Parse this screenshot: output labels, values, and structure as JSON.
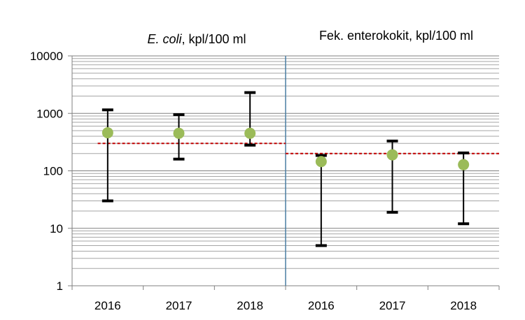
{
  "chart_data": {
    "type": "scatter",
    "y_scale": "log",
    "ylim": [
      1,
      10000
    ],
    "y_ticks": [
      "1",
      "10",
      "100",
      "1000",
      "10000"
    ],
    "grid": "horizontal minor gridlines",
    "categories": [
      "2016",
      "2017",
      "2018",
      "2016",
      "2017",
      "2018"
    ],
    "panels": [
      {
        "title_italic": "E. coli",
        "title_rest": ", kpl/100 ml",
        "threshold": 300,
        "threshold_color": "#c00000",
        "points": [
          {
            "category": "2016",
            "value": 460,
            "min": 30,
            "max": 1150
          },
          {
            "category": "2017",
            "value": 450,
            "min": 160,
            "max": 950
          },
          {
            "category": "2018",
            "value": 450,
            "min": 280,
            "max": 2300
          }
        ]
      },
      {
        "title_italic": "",
        "title_rest": "Fek. enterokokit,  kpl/100 ml",
        "threshold": 200,
        "threshold_color": "#c00000",
        "points": [
          {
            "category": "2016",
            "value": 145,
            "min": 5,
            "max": 185
          },
          {
            "category": "2017",
            "value": 190,
            "min": 19,
            "max": 330
          },
          {
            "category": "2018",
            "value": 128,
            "min": 12,
            "max": 205
          }
        ]
      }
    ],
    "marker_color": "#9bbb59",
    "divider_color": "#4a7ea3"
  }
}
